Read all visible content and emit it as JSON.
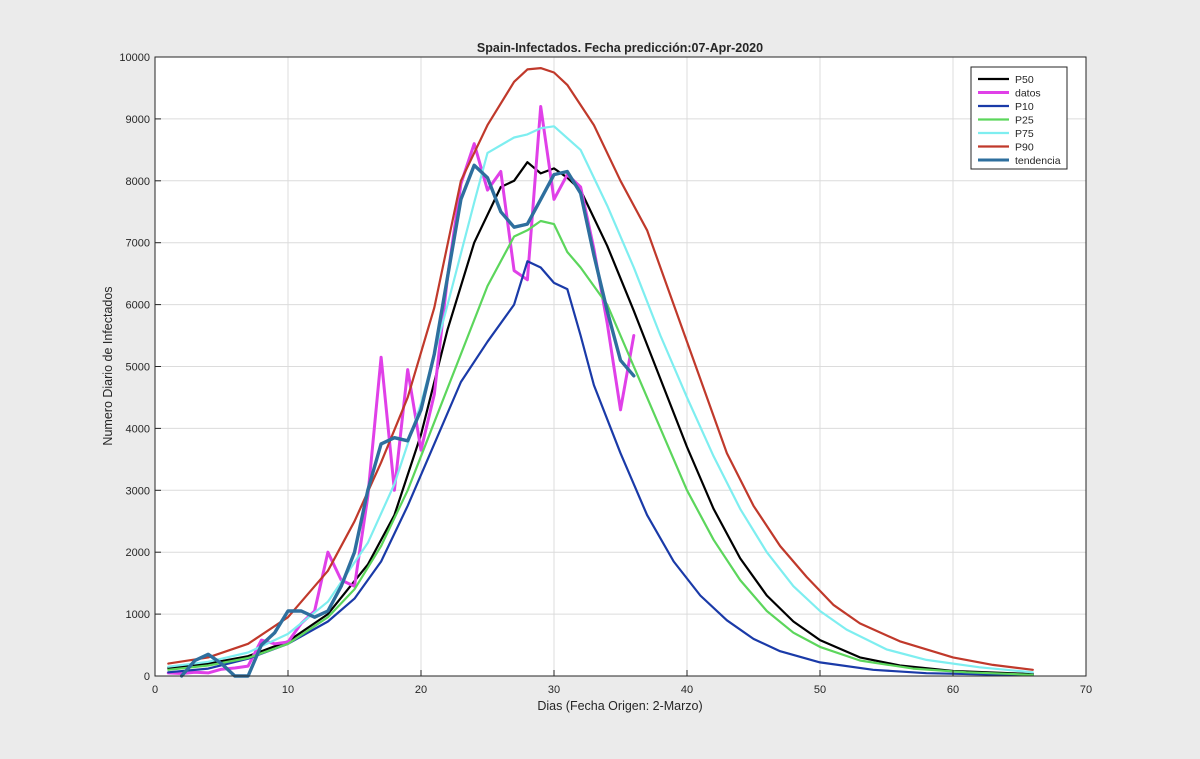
{
  "chart_data": {
    "type": "line",
    "title": "Spain-Infectados. Fecha predicción:07-Apr-2020",
    "xlabel": "Dias (Fecha Origen: 2-Marzo)",
    "ylabel": "Numero Diario de Infectados",
    "xlim": [
      0,
      70
    ],
    "ylim": [
      0,
      10000
    ],
    "xticks": [
      0,
      10,
      20,
      30,
      40,
      50,
      60,
      70
    ],
    "yticks": [
      0,
      1000,
      2000,
      3000,
      4000,
      5000,
      6000,
      7000,
      8000,
      9000,
      10000
    ],
    "grid": true,
    "legend_position": "top-right",
    "series": [
      {
        "name": "P50",
        "color": "#000000",
        "width": 2.2,
        "points": [
          [
            1,
            130
          ],
          [
            4,
            200
          ],
          [
            7,
            320
          ],
          [
            10,
            560
          ],
          [
            13,
            1000
          ],
          [
            16,
            1800
          ],
          [
            18,
            2600
          ],
          [
            20,
            3900
          ],
          [
            22,
            5600
          ],
          [
            24,
            7000
          ],
          [
            26,
            7900
          ],
          [
            27,
            8000
          ],
          [
            28,
            8300
          ],
          [
            29,
            8120
          ],
          [
            30,
            8200
          ],
          [
            31,
            8050
          ],
          [
            32,
            7850
          ],
          [
            34,
            6950
          ],
          [
            36,
            5900
          ],
          [
            38,
            4800
          ],
          [
            40,
            3700
          ],
          [
            42,
            2700
          ],
          [
            44,
            1900
          ],
          [
            46,
            1300
          ],
          [
            48,
            880
          ],
          [
            50,
            580
          ],
          [
            53,
            300
          ],
          [
            56,
            170
          ],
          [
            60,
            80
          ],
          [
            66,
            30
          ]
        ]
      },
      {
        "name": "datos",
        "color": "#e040e8",
        "width": 3,
        "points": [
          [
            1,
            50
          ],
          [
            2,
            40
          ],
          [
            3,
            60
          ],
          [
            4,
            50
          ],
          [
            5,
            110
          ],
          [
            6,
            130
          ],
          [
            7,
            160
          ],
          [
            8,
            580
          ],
          [
            9,
            520
          ],
          [
            10,
            550
          ],
          [
            11,
            850
          ],
          [
            12,
            1050
          ],
          [
            13,
            2000
          ],
          [
            14,
            1550
          ],
          [
            15,
            1450
          ],
          [
            16,
            2900
          ],
          [
            17,
            5150
          ],
          [
            18,
            3000
          ],
          [
            19,
            4950
          ],
          [
            20,
            3650
          ],
          [
            21,
            4550
          ],
          [
            22,
            6450
          ],
          [
            23,
            7950
          ],
          [
            24,
            8600
          ],
          [
            25,
            7850
          ],
          [
            26,
            8150
          ],
          [
            27,
            6550
          ],
          [
            28,
            6400
          ],
          [
            29,
            9200
          ],
          [
            30,
            7700
          ],
          [
            31,
            8100
          ],
          [
            32,
            7900
          ],
          [
            33,
            6900
          ],
          [
            34,
            5700
          ],
          [
            35,
            4300
          ],
          [
            36,
            5500
          ]
        ]
      },
      {
        "name": "P10",
        "color": "#1a3aa8",
        "width": 2.2,
        "points": [
          [
            1,
            60
          ],
          [
            4,
            120
          ],
          [
            7,
            280
          ],
          [
            10,
            520
          ],
          [
            13,
            880
          ],
          [
            15,
            1250
          ],
          [
            17,
            1850
          ],
          [
            19,
            2750
          ],
          [
            21,
            3750
          ],
          [
            23,
            4750
          ],
          [
            25,
            5400
          ],
          [
            27,
            6000
          ],
          [
            28,
            6700
          ],
          [
            29,
            6600
          ],
          [
            30,
            6350
          ],
          [
            31,
            6250
          ],
          [
            32,
            5500
          ],
          [
            33,
            4700
          ],
          [
            35,
            3600
          ],
          [
            37,
            2600
          ],
          [
            39,
            1850
          ],
          [
            41,
            1300
          ],
          [
            43,
            900
          ],
          [
            45,
            600
          ],
          [
            47,
            400
          ],
          [
            50,
            220
          ],
          [
            54,
            100
          ],
          [
            58,
            45
          ],
          [
            66,
            10
          ]
        ]
      },
      {
        "name": "P25",
        "color": "#5cd65c",
        "width": 2.2,
        "points": [
          [
            1,
            100
          ],
          [
            4,
            170
          ],
          [
            7,
            290
          ],
          [
            10,
            520
          ],
          [
            13,
            950
          ],
          [
            15,
            1400
          ],
          [
            17,
            2100
          ],
          [
            19,
            3000
          ],
          [
            21,
            4100
          ],
          [
            23,
            5200
          ],
          [
            25,
            6300
          ],
          [
            27,
            7100
          ],
          [
            28,
            7200
          ],
          [
            29,
            7350
          ],
          [
            30,
            7300
          ],
          [
            31,
            6850
          ],
          [
            32,
            6600
          ],
          [
            34,
            6000
          ],
          [
            36,
            5000
          ],
          [
            38,
            4000
          ],
          [
            40,
            3000
          ],
          [
            42,
            2200
          ],
          [
            44,
            1550
          ],
          [
            46,
            1050
          ],
          [
            48,
            700
          ],
          [
            50,
            470
          ],
          [
            53,
            250
          ],
          [
            57,
            120
          ],
          [
            61,
            60
          ],
          [
            66,
            20
          ]
        ]
      },
      {
        "name": "P75",
        "color": "#7eeef0",
        "width": 2.2,
        "points": [
          [
            1,
            150
          ],
          [
            4,
            230
          ],
          [
            7,
            380
          ],
          [
            10,
            680
          ],
          [
            13,
            1200
          ],
          [
            16,
            2150
          ],
          [
            18,
            3100
          ],
          [
            20,
            4400
          ],
          [
            22,
            6000
          ],
          [
            24,
            7650
          ],
          [
            25,
            8450
          ],
          [
            27,
            8700
          ],
          [
            28,
            8750
          ],
          [
            29,
            8850
          ],
          [
            30,
            8880
          ],
          [
            32,
            8500
          ],
          [
            34,
            7600
          ],
          [
            36,
            6600
          ],
          [
            38,
            5500
          ],
          [
            40,
            4500
          ],
          [
            42,
            3550
          ],
          [
            44,
            2700
          ],
          [
            46,
            2000
          ],
          [
            48,
            1450
          ],
          [
            50,
            1050
          ],
          [
            52,
            750
          ],
          [
            55,
            430
          ],
          [
            58,
            260
          ],
          [
            62,
            140
          ],
          [
            66,
            60
          ]
        ]
      },
      {
        "name": "P90",
        "color": "#c0392b",
        "width": 2.2,
        "points": [
          [
            1,
            200
          ],
          [
            4,
            300
          ],
          [
            7,
            520
          ],
          [
            10,
            950
          ],
          [
            13,
            1700
          ],
          [
            15,
            2500
          ],
          [
            17,
            3450
          ],
          [
            19,
            4500
          ],
          [
            21,
            5950
          ],
          [
            23,
            8000
          ],
          [
            25,
            8900
          ],
          [
            27,
            9600
          ],
          [
            28,
            9800
          ],
          [
            29,
            9820
          ],
          [
            30,
            9750
          ],
          [
            31,
            9550
          ],
          [
            33,
            8900
          ],
          [
            35,
            8000
          ],
          [
            37,
            7200
          ],
          [
            39,
            6000
          ],
          [
            41,
            4800
          ],
          [
            43,
            3600
          ],
          [
            45,
            2750
          ],
          [
            47,
            2100
          ],
          [
            49,
            1600
          ],
          [
            51,
            1150
          ],
          [
            53,
            850
          ],
          [
            56,
            560
          ],
          [
            60,
            300
          ],
          [
            63,
            180
          ],
          [
            66,
            100
          ]
        ]
      },
      {
        "name": "tendencia",
        "color": "#2e6f9e",
        "width": 3.4,
        "points": [
          [
            2,
            0
          ],
          [
            3,
            250
          ],
          [
            4,
            350
          ],
          [
            5,
            200
          ],
          [
            6,
            0
          ],
          [
            7,
            0
          ],
          [
            8,
            500
          ],
          [
            9,
            700
          ],
          [
            10,
            1050
          ],
          [
            11,
            1050
          ],
          [
            12,
            950
          ],
          [
            13,
            1050
          ],
          [
            14,
            1450
          ],
          [
            15,
            2000
          ],
          [
            16,
            3000
          ],
          [
            17,
            3750
          ],
          [
            18,
            3850
          ],
          [
            19,
            3800
          ],
          [
            20,
            4300
          ],
          [
            21,
            5200
          ],
          [
            22,
            6450
          ],
          [
            23,
            7700
          ],
          [
            24,
            8250
          ],
          [
            25,
            8050
          ],
          [
            26,
            7500
          ],
          [
            27,
            7250
          ],
          [
            28,
            7300
          ],
          [
            29,
            7700
          ],
          [
            30,
            8100
          ],
          [
            31,
            8150
          ],
          [
            32,
            7800
          ],
          [
            33,
            6800
          ],
          [
            34,
            5900
          ],
          [
            35,
            5100
          ],
          [
            36,
            4850
          ]
        ]
      }
    ]
  }
}
